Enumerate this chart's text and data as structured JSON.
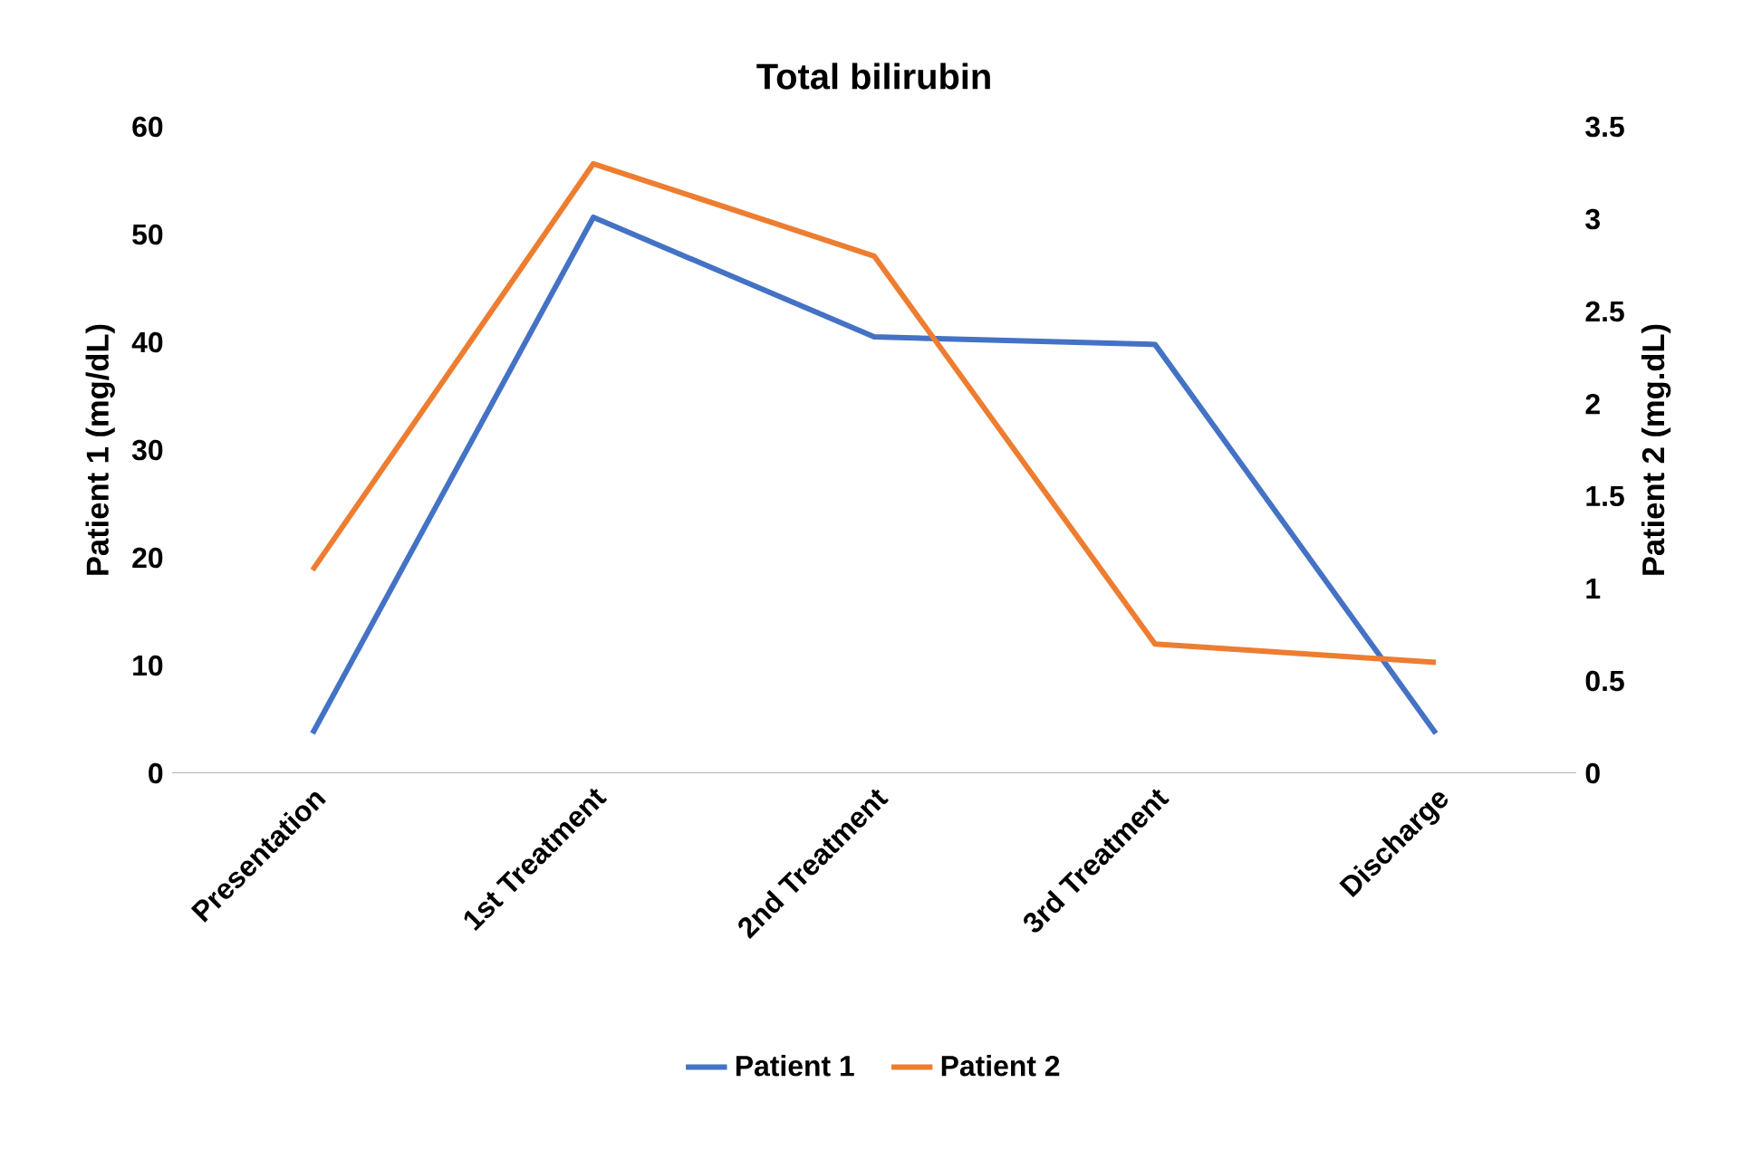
{
  "chart_data": {
    "type": "line",
    "title": "Total bilirubin",
    "ylabel": "Patient 1 (mg/dL)",
    "y2label": "Patient 2 (mg.dL)",
    "categories": [
      "Presentation",
      "1st Treatment",
      "2nd Treatment",
      "3rd Treatment",
      "Discharge"
    ],
    "series": [
      {
        "name": "Patient 1",
        "color": "#4472c4",
        "values": [
          3.7,
          51.6,
          40.5,
          39.8,
          3.7
        ]
      },
      {
        "name": "Patient 2",
        "color": "#ed7d31",
        "axis": "y2",
        "values": [
          1.1,
          3.3,
          2.8,
          0.7,
          0.6
        ]
      }
    ],
    "ylim": [
      0,
      60
    ],
    "yticks": [
      0,
      10,
      20,
      30,
      40,
      50,
      60
    ],
    "y2lim": [
      0,
      3.5
    ],
    "y2ticks": [
      0,
      0.5,
      1,
      1.5,
      2,
      2.5,
      3,
      3.5
    ],
    "legend": "bottom",
    "marker": "none",
    "line_style": "solid"
  }
}
